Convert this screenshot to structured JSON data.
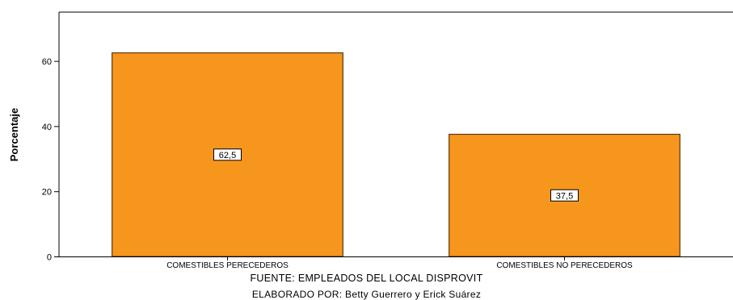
{
  "chart_data": {
    "type": "bar",
    "ylabel": "Porcentaje",
    "xlabel": "",
    "ylim": [
      0,
      75
    ],
    "yticks": [
      0,
      20,
      40,
      60
    ],
    "categories": [
      "COMESTIBLES PERECEDEROS",
      "COMESTIBLES NO PERECEDEROS"
    ],
    "values": [
      62.5,
      37.5
    ],
    "data_labels": [
      "62,5",
      "37,5"
    ],
    "bar_color": "#F7961D",
    "bar_edge_color": "#5A3A10",
    "grid": false,
    "legend": "none"
  },
  "footer": {
    "source": "FUENTE: EMPLEADOS DEL LOCAL DISPROVIT",
    "author": "ELABORADO POR: Betty Guerrero y Erick Suárez"
  }
}
